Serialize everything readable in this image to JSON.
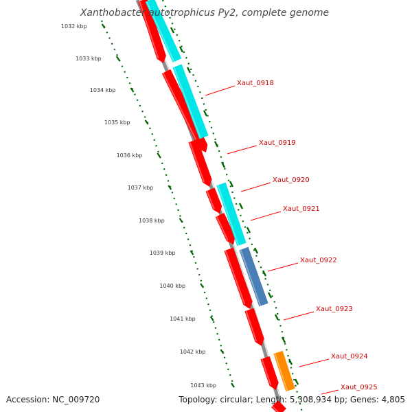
{
  "title": "Xanthobacter autotrophicus Py2, complete genome",
  "footer": {
    "accession": "Accession: NC_009720",
    "summary": "Topology: circular; Length: 5,308,934 bp; Genes: 4,805"
  },
  "colors": {
    "backbone": "#8c8c8c",
    "cds_red": "#ff0000",
    "cds_cyan": "#00e5e5",
    "cds_steelblue": "#4a7fb5",
    "cds_orange": "#ff8c00",
    "tick_green": "#006400",
    "label_red": "#cc0000",
    "leader_red": "#ff0000"
  },
  "kbp_ticks": [
    {
      "label": "1032 kbp",
      "value": 1032
    },
    {
      "label": "1033 kbp",
      "value": 1033
    },
    {
      "label": "1034 kbp",
      "value": 1034
    },
    {
      "label": "1035 kbp",
      "value": 1035
    },
    {
      "label": "1036 kbp",
      "value": 1036
    },
    {
      "label": "1037 kbp",
      "value": 1037
    },
    {
      "label": "1038 kbp",
      "value": 1038
    },
    {
      "label": "1039 kbp",
      "value": 1039
    },
    {
      "label": "1040 kbp",
      "value": 1040
    },
    {
      "label": "1041 kbp",
      "value": 1041
    },
    {
      "label": "1042 kbp",
      "value": 1042
    },
    {
      "label": "1043 kbp",
      "value": 1043
    }
  ],
  "genes": [
    {
      "name": "Xaut_0918"
    },
    {
      "name": "Xaut_0919"
    },
    {
      "name": "Xaut_0920"
    },
    {
      "name": "Xaut_0921"
    },
    {
      "name": "Xaut_0922"
    },
    {
      "name": "Xaut_0923"
    },
    {
      "name": "Xaut_0924"
    },
    {
      "name": "Xaut_0925"
    }
  ]
}
